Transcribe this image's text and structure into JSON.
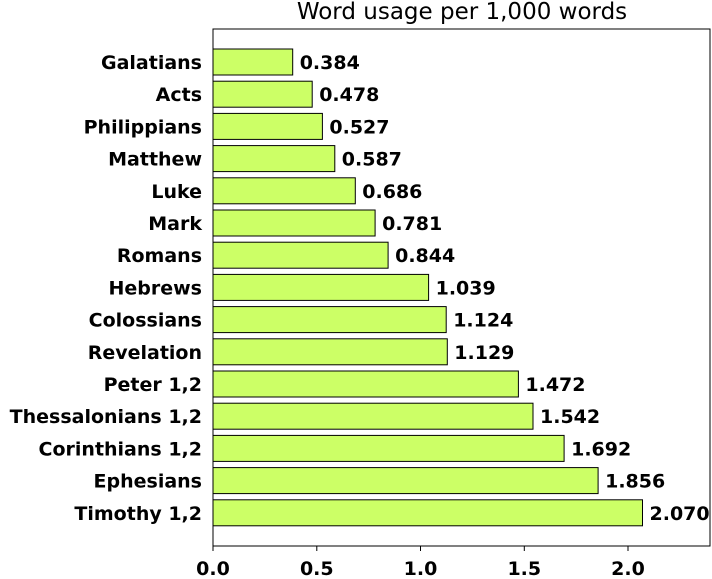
{
  "chart_data": {
    "type": "bar",
    "orientation": "horizontal",
    "title": "Word usage per 1,000 words",
    "xlabel": "",
    "ylabel": "",
    "xlim": [
      0,
      2.4
    ],
    "xticks": [
      0.0,
      0.5,
      1.0,
      1.5,
      2.0
    ],
    "xtick_labels": [
      "0.0",
      "0.5",
      "1.0",
      "1.5",
      "2.0"
    ],
    "grid": false,
    "bar_color": "#ccff66",
    "categories": [
      "Galatians",
      "Acts",
      "Philippians",
      "Matthew",
      "Luke",
      "Mark",
      "Romans",
      "Hebrews",
      "Colossians",
      "Revelation",
      "Peter 1,2",
      "Thessalonians 1,2",
      "Corinthians 1,2",
      "Ephesians",
      "Timothy 1,2"
    ],
    "values": [
      0.384,
      0.478,
      0.527,
      0.587,
      0.686,
      0.781,
      0.844,
      1.039,
      1.124,
      1.129,
      1.472,
      1.542,
      1.692,
      1.856,
      2.07
    ],
    "value_labels": [
      "0.384",
      "0.478",
      "0.527",
      "0.587",
      "0.686",
      "0.781",
      "0.844",
      "1.039",
      "1.124",
      "1.129",
      "1.472",
      "1.542",
      "1.692",
      "1.856",
      "2.070"
    ]
  }
}
